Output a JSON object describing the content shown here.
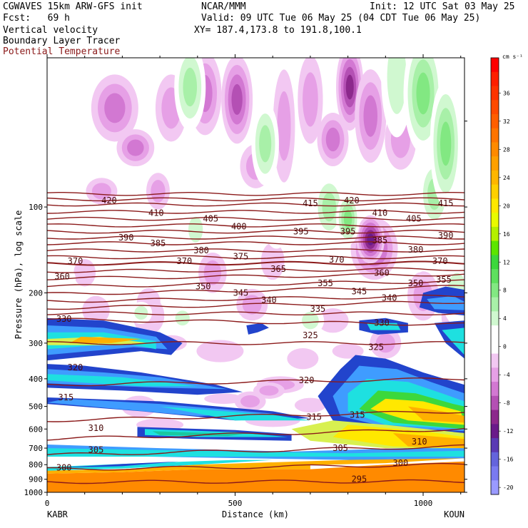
{
  "header": {
    "left": [
      "CGWAVES 15km ARW-GFS init",
      "Fcst:   69 h",
      "Vertical velocity",
      "Boundary Layer Tracer",
      "Potential Temperature"
    ],
    "center": [
      "NCAR/MMM",
      "Valid: 09 UTC Tue 06 May 25 (04 CDT Tue 06 May 25)",
      "XY= 187.4,173.8 to 191.8,100.1"
    ],
    "right": "Init: 12 UTC Sat 03 May 25",
    "colors": {
      "potential_temperature": "#8b1a1a",
      "text": "#000000"
    }
  },
  "chart_data": {
    "type": "heatmap",
    "title": "Vertical velocity",
    "xlabel": "Distance (km)",
    "ylabel": "Pressure (hPa), log scale",
    "xlim": [
      0,
      1110
    ],
    "x_ticks": [
      0,
      500,
      1000
    ],
    "x_endpoints": [
      "KABR",
      "KOUN"
    ],
    "y_ticks": [
      100,
      200,
      300,
      400,
      500,
      600,
      700,
      800,
      900,
      1000
    ],
    "ylim": [
      1000,
      30
    ],
    "colorbar": {
      "unit": "cm s⁻¹",
      "tick_labels": [
        36,
        32,
        28,
        24,
        20,
        16,
        12,
        8,
        4,
        0,
        -4,
        -8,
        -12,
        -16,
        -20
      ],
      "bins_top_to_bottom": [
        {
          "v": 40,
          "c": "#ff0000"
        },
        {
          "v": 38,
          "c": "#ff1f00"
        },
        {
          "v": 36,
          "c": "#ff3300"
        },
        {
          "v": 34,
          "c": "#ff4a00"
        },
        {
          "v": 32,
          "c": "#ff5e00"
        },
        {
          "v": 30,
          "c": "#ff7400"
        },
        {
          "v": 28,
          "c": "#ff8a00"
        },
        {
          "v": 26,
          "c": "#ffa000"
        },
        {
          "v": 24,
          "c": "#ffb600"
        },
        {
          "v": 22,
          "c": "#ffd000"
        },
        {
          "v": 20,
          "c": "#ffe800"
        },
        {
          "v": 18,
          "c": "#e9fb00"
        },
        {
          "v": 16,
          "c": "#b4f000"
        },
        {
          "v": 14,
          "c": "#5ce600"
        },
        {
          "v": 12,
          "c": "#3cd83c"
        },
        {
          "v": 10,
          "c": "#5ee05e"
        },
        {
          "v": 8,
          "c": "#82e882"
        },
        {
          "v": 6,
          "c": "#a8f0a8"
        },
        {
          "v": 4,
          "c": "#d0f8d0"
        },
        {
          "v": 2,
          "c": "#ffffff"
        },
        {
          "v": 0,
          "c": "#ffffff"
        },
        {
          "v": -2,
          "c": "#f2c8f2"
        },
        {
          "v": -4,
          "c": "#e6a0e6"
        },
        {
          "v": -6,
          "c": "#d278d2"
        },
        {
          "v": -8,
          "c": "#b450b4"
        },
        {
          "v": -10,
          "c": "#8c288c"
        },
        {
          "v": -12,
          "c": "#6a1a8a"
        },
        {
          "v": -14,
          "c": "#5a3ab4"
        },
        {
          "v": -16,
          "c": "#6464dc"
        },
        {
          "v": -18,
          "c": "#7a7af0"
        },
        {
          "v": -20,
          "c": "#9a9aff"
        }
      ]
    },
    "theta_contour_labels": [
      {
        "t": 420,
        "x": 165,
        "p": 95
      },
      {
        "t": 420,
        "x": 810,
        "p": 95
      },
      {
        "t": 415,
        "x": 700,
        "p": 97
      },
      {
        "t": 415,
        "x": 1060,
        "p": 97
      },
      {
        "t": 410,
        "x": 290,
        "p": 105
      },
      {
        "t": 410,
        "x": 885,
        "p": 105
      },
      {
        "t": 405,
        "x": 435,
        "p": 110
      },
      {
        "t": 405,
        "x": 975,
        "p": 110
      },
      {
        "t": 400,
        "x": 510,
        "p": 117
      },
      {
        "t": 395,
        "x": 675,
        "p": 122
      },
      {
        "t": 395,
        "x": 800,
        "p": 122
      },
      {
        "t": 390,
        "x": 210,
        "p": 128
      },
      {
        "t": 390,
        "x": 1060,
        "p": 126
      },
      {
        "t": 385,
        "x": 295,
        "p": 134
      },
      {
        "t": 385,
        "x": 885,
        "p": 131
      },
      {
        "t": 380,
        "x": 410,
        "p": 142
      },
      {
        "t": 380,
        "x": 980,
        "p": 141
      },
      {
        "t": 375,
        "x": 515,
        "p": 149
      },
      {
        "t": 370,
        "x": 75,
        "p": 155
      },
      {
        "t": 370,
        "x": 770,
        "p": 153
      },
      {
        "t": 370,
        "x": 365,
        "p": 155
      },
      {
        "t": 370,
        "x": 1045,
        "p": 155
      },
      {
        "t": 365,
        "x": 615,
        "p": 165
      },
      {
        "t": 360,
        "x": 40,
        "p": 175
      },
      {
        "t": 360,
        "x": 890,
        "p": 170
      },
      {
        "t": 355,
        "x": 740,
        "p": 185
      },
      {
        "t": 355,
        "x": 1055,
        "p": 180
      },
      {
        "t": 350,
        "x": 415,
        "p": 190
      },
      {
        "t": 350,
        "x": 980,
        "p": 185
      },
      {
        "t": 345,
        "x": 515,
        "p": 200
      },
      {
        "t": 345,
        "x": 830,
        "p": 198
      },
      {
        "t": 340,
        "x": 590,
        "p": 212
      },
      {
        "t": 340,
        "x": 910,
        "p": 208
      },
      {
        "t": 335,
        "x": 720,
        "p": 228
      },
      {
        "t": 330,
        "x": 45,
        "p": 247
      },
      {
        "t": 330,
        "x": 890,
        "p": 255
      },
      {
        "t": 325,
        "x": 700,
        "p": 282
      },
      {
        "t": 325,
        "x": 875,
        "p": 310
      },
      {
        "t": 320,
        "x": 75,
        "p": 365
      },
      {
        "t": 320,
        "x": 690,
        "p": 405
      },
      {
        "t": 315,
        "x": 50,
        "p": 465
      },
      {
        "t": 315,
        "x": 710,
        "p": 545
      },
      {
        "t": 315,
        "x": 825,
        "p": 535
      },
      {
        "t": 310,
        "x": 130,
        "p": 595
      },
      {
        "t": 310,
        "x": 990,
        "p": 665
      },
      {
        "t": 305,
        "x": 130,
        "p": 710
      },
      {
        "t": 305,
        "x": 780,
        "p": 700
      },
      {
        "t": 300,
        "x": 45,
        "p": 820
      },
      {
        "t": 300,
        "x": 940,
        "p": 790
      },
      {
        "t": 295,
        "x": 830,
        "p": 900
      }
    ],
    "legend": [
      "Vertical velocity (colorbar)",
      "Boundary Layer Tracer",
      "Potential Temperature"
    ],
    "grid": false
  }
}
